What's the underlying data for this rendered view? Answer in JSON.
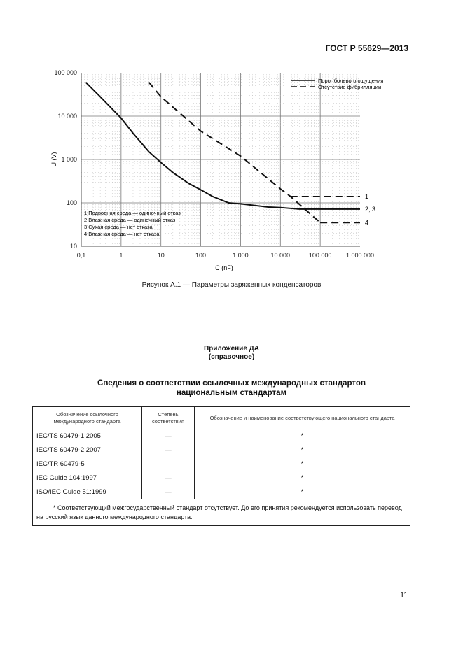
{
  "header": {
    "doc_id": "ГОСТ Р 55629—2013"
  },
  "chart_data": {
    "type": "line",
    "xlabel": "C (nF)",
    "ylabel": "U (V)",
    "xscale": "log",
    "yscale": "log",
    "xlim": [
      0.1,
      1000000
    ],
    "ylim": [
      10,
      100000
    ],
    "x_ticks": [
      "0,1",
      "1",
      "10",
      "100",
      "1 000",
      "10 000",
      "100 000",
      "1 000 000"
    ],
    "y_ticks": [
      "100 000",
      "10 000",
      "1 000",
      "100",
      "10"
    ],
    "grid": true,
    "legend_position": "top-right",
    "series": [
      {
        "name": "Порог болевого ощущения",
        "style": "solid",
        "points": [
          [
            0.13,
            60000
          ],
          [
            0.3,
            28000
          ],
          [
            1,
            9000
          ],
          [
            2,
            4000
          ],
          [
            5,
            1500
          ],
          [
            10,
            850
          ],
          [
            20,
            500
          ],
          [
            50,
            280
          ],
          [
            100,
            200
          ],
          [
            200,
            140
          ],
          [
            500,
            100
          ],
          [
            1000,
            95
          ],
          [
            5000,
            80
          ],
          [
            10000,
            78
          ],
          [
            30000,
            72
          ],
          [
            1000000,
            72
          ]
        ]
      },
      {
        "name": "Отсутствие фибрилляции",
        "style": "dashed",
        "points": [
          [
            5,
            60000
          ],
          [
            10,
            28000
          ],
          [
            100,
            4500
          ],
          [
            1000,
            1200
          ],
          [
            10000,
            210
          ],
          [
            18000,
            140
          ],
          [
            100000,
            35
          ]
        ]
      },
      {
        "name": "Отсутствие фибрилляции (1)",
        "style": "dashed",
        "points": [
          [
            18000,
            140
          ],
          [
            1000000,
            140
          ]
        ]
      },
      {
        "name": "Отсутствие фибрилляции (4)",
        "style": "dashed",
        "points": [
          [
            100000,
            35
          ],
          [
            1000000,
            35
          ]
        ]
      }
    ],
    "curve_labels": [
      "1",
      "2, 3",
      "4"
    ],
    "notes": [
      "1 Подводная среда — одиночный отказ",
      "2 Влажная среда — одиночный отказ",
      "3 Сухая среда — нет отказа",
      "4 Влажная среда — нет отказа"
    ]
  },
  "figure_caption": "Рисунок А.1 — Параметры заряженных конденсаторов",
  "appendix": {
    "title": "Приложение ДА",
    "subtitle": "(справочное)",
    "heading_line1": "Сведения о соответствии ссылочных международных стандартов",
    "heading_line2": "национальным стандартам"
  },
  "table": {
    "headers": [
      "Обозначение ссылочного международного стандарта",
      "Степень соответствия",
      "Обозначение и наименование соответствующего национального стандарта"
    ],
    "rows": [
      [
        "IEC/TS 60479-1:2005",
        "—",
        "*"
      ],
      [
        "IEC/TS 60479-2:2007",
        "—",
        "*"
      ],
      [
        "IEC/TR 60479-5",
        "",
        "*"
      ],
      [
        "IEC Guide 104:1997",
        "—",
        "*"
      ],
      [
        "ISO/IEC Guide 51:1999",
        "—",
        "*"
      ]
    ],
    "footnote": "* Соответствующий межгосударственный стандарт отсутствует. До его принятия рекомендуется использовать перевод на русский язык данного международного стандарта."
  },
  "page_number": "11"
}
